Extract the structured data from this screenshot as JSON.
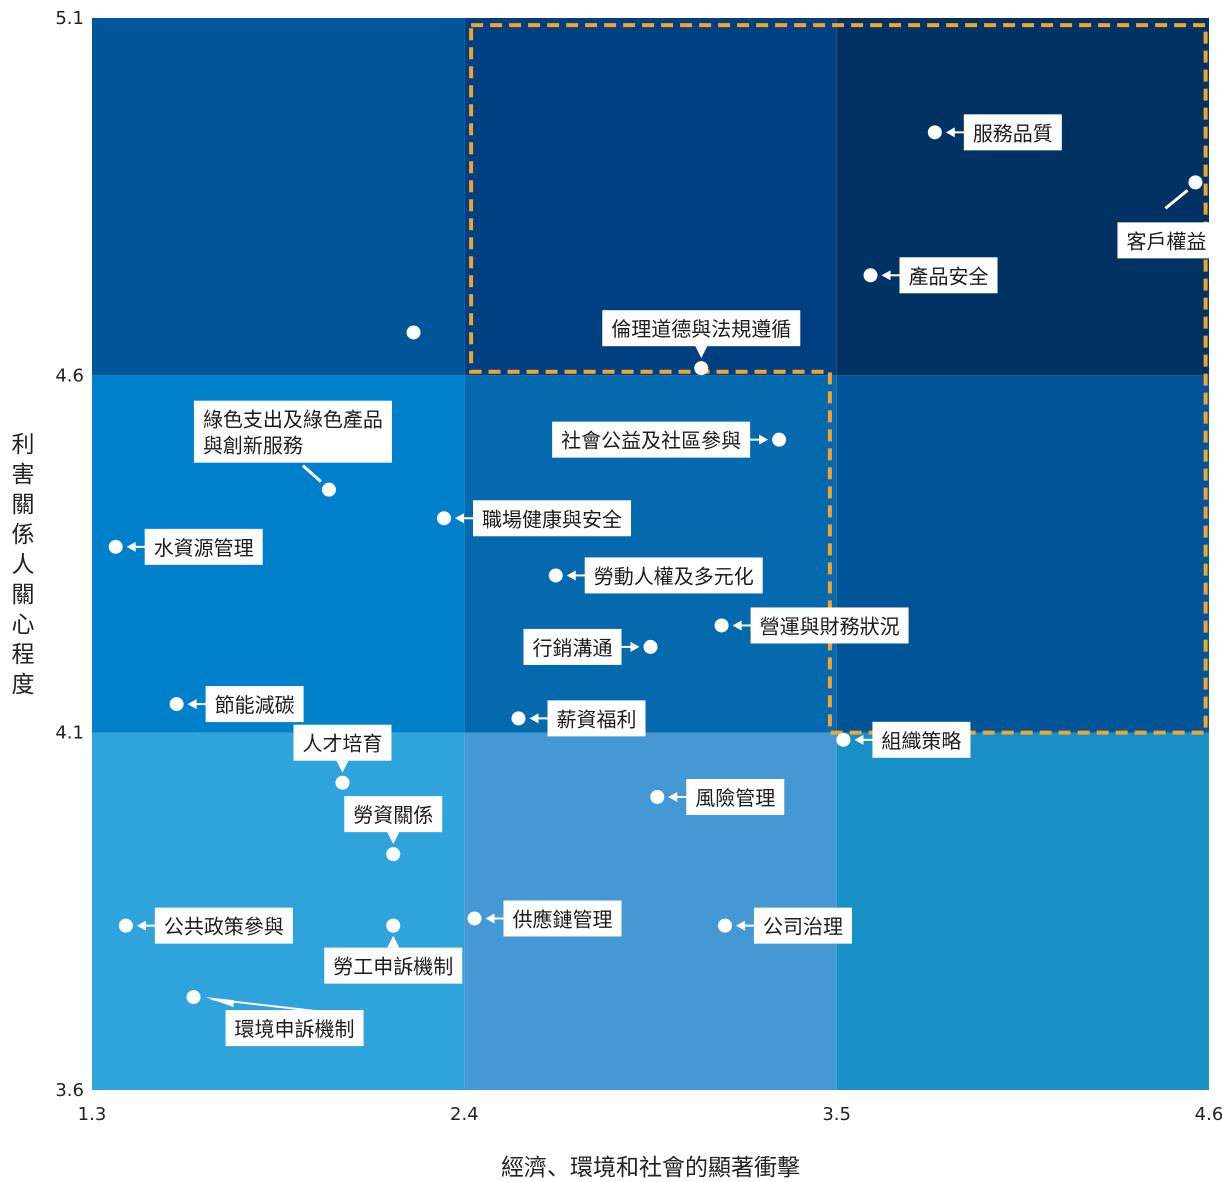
{
  "chart_data": {
    "type": "scatter",
    "xlabel": "經濟、環境和社會的顯著衝擊",
    "ylabel": "利害關係人關心程度",
    "xlim": [
      1.3,
      4.6
    ],
    "ylim": [
      3.6,
      5.1
    ],
    "xticks": [
      "1.3",
      "2.4",
      "3.5",
      "4.6"
    ],
    "yticks": [
      "3.6",
      "4.1",
      "4.6",
      "5.1"
    ],
    "grid": false,
    "quadrant_colors": {
      "bottom": [
        "#2ea3dc",
        "#4499d5",
        "#1890c6"
      ],
      "middle": [
        "#0080cb",
        "#0569ad",
        "#005598"
      ],
      "top": [
        "#015599",
        "#003f80",
        "#003263"
      ]
    },
    "highlight_color": "#f1a52f",
    "points": [
      {
        "label": "服務品質",
        "x": 3.79,
        "y": 4.94,
        "side": "right"
      },
      {
        "label": "客戶權益",
        "x": 4.56,
        "y": 4.87,
        "side": "callout-left-below"
      },
      {
        "label": "產品安全",
        "x": 3.6,
        "y": 4.74,
        "side": "right"
      },
      {
        "label": "",
        "x": 2.25,
        "y": 4.66,
        "side": "none"
      },
      {
        "label": "倫理道德與法規遵循",
        "x": 3.1,
        "y": 4.61,
        "side": "callout-above"
      },
      {
        "label": "社會公益及社區參與",
        "x": 3.33,
        "y": 4.51,
        "side": "left"
      },
      {
        "label": "綠色支出及綠色產品與創新服務",
        "x": 2.0,
        "y": 4.44,
        "side": "callout-above-left"
      },
      {
        "label": "職場健康與安全",
        "x": 2.34,
        "y": 4.4,
        "side": "right"
      },
      {
        "label": "水資源管理",
        "x": 1.37,
        "y": 4.36,
        "side": "right"
      },
      {
        "label": "勞動人權及多元化",
        "x": 2.67,
        "y": 4.32,
        "side": "right"
      },
      {
        "label": "營運與財務狀況",
        "x": 3.16,
        "y": 4.25,
        "side": "right"
      },
      {
        "label": "行銷溝通",
        "x": 2.95,
        "y": 4.22,
        "side": "left"
      },
      {
        "label": "節能減碳",
        "x": 1.55,
        "y": 4.14,
        "side": "right"
      },
      {
        "label": "薪資福利",
        "x": 2.56,
        "y": 4.12,
        "side": "right"
      },
      {
        "label": "組織策略",
        "x": 3.52,
        "y": 4.09,
        "side": "right"
      },
      {
        "label": "人才培育",
        "x": 2.04,
        "y": 4.03,
        "side": "callout-above"
      },
      {
        "label": "風險管理",
        "x": 2.97,
        "y": 4.01,
        "side": "right"
      },
      {
        "label": "勞資關係",
        "x": 2.19,
        "y": 3.93,
        "side": "callout-above"
      },
      {
        "label": "公共政策參與",
        "x": 1.4,
        "y": 3.83,
        "side": "right"
      },
      {
        "label": "勞工申訴機制",
        "x": 2.19,
        "y": 3.83,
        "side": "callout-below"
      },
      {
        "label": "供應鏈管理",
        "x": 2.43,
        "y": 3.84,
        "side": "right"
      },
      {
        "label": "公司治理",
        "x": 3.17,
        "y": 3.83,
        "side": "right"
      },
      {
        "label": "環境申訴機制",
        "x": 1.6,
        "y": 3.73,
        "side": "callout-below-right"
      }
    ]
  }
}
